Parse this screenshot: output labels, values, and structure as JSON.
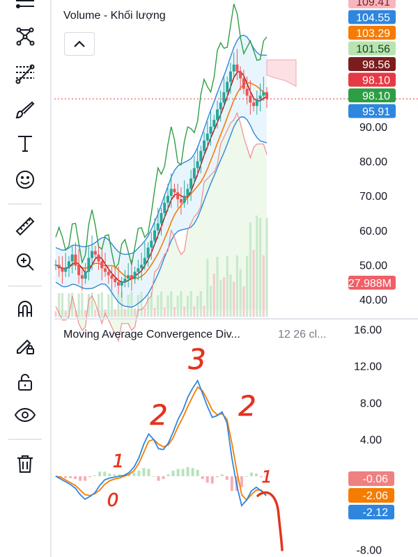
{
  "top_pane": {
    "title": "Volume - Khối lượng",
    "axis_ticks": [
      "90.00",
      "80.00",
      "70.00",
      "60.00",
      "50.00",
      "40.00"
    ],
    "price_tags": [
      {
        "label": "109.41",
        "color": "#f7b6bd",
        "text": "#7a1f2b"
      },
      {
        "label": "104.55",
        "color": "#2e86de",
        "text": "#ffffff"
      },
      {
        "label": "103.29",
        "color": "#f57c00",
        "text": "#ffffff"
      },
      {
        "label": "101.56",
        "color": "#b9e3b0",
        "text": "#16451a"
      },
      {
        "label": "98.56",
        "color": "#7b1d1d",
        "text": "#ffffff"
      },
      {
        "label": "98.10",
        "color": "#e53945",
        "text": "#ffffff"
      },
      {
        "label": "98.10",
        "color": "#2e9e44",
        "text": "#ffffff"
      },
      {
        "label": "95.91",
        "color": "#2e86de",
        "text": "#ffffff"
      }
    ],
    "volume_tag": {
      "label": "27.988M",
      "color": "#ef5f68",
      "text": "#ffffff"
    }
  },
  "macd_pane": {
    "title": "Moving Average Convergence Div...",
    "params": "12 26 cl...",
    "axis_ticks": [
      "16.00",
      "12.00",
      "8.00",
      "4.00",
      "-8.00"
    ],
    "value_tags": [
      {
        "label": "-0.06",
        "color": "#f08080",
        "text": "#ffffff"
      },
      {
        "label": "-2.06",
        "color": "#f57c00",
        "text": "#ffffff"
      },
      {
        "label": "-2.12",
        "color": "#2e86de",
        "text": "#ffffff"
      }
    ],
    "wave_annotations": [
      "0",
      "1",
      "2",
      "3",
      "2",
      "1"
    ]
  },
  "chart_data": [
    {
      "type": "line",
      "title": "Volume - Khối lượng",
      "ylim": [
        37,
        112
      ],
      "close": [
        50,
        49,
        48,
        49,
        51,
        53,
        50,
        47,
        46,
        48,
        52,
        54,
        53,
        51,
        49,
        48,
        47,
        46,
        45,
        44,
        45,
        46,
        47,
        46,
        48,
        49,
        50,
        52,
        55,
        57,
        60,
        62,
        65,
        68,
        70,
        72,
        71,
        69,
        68,
        70,
        72,
        75,
        78,
        80,
        83,
        86,
        88,
        90,
        92,
        95,
        97,
        100,
        103,
        106,
        108,
        106,
        104,
        101,
        99,
        97,
        96,
        98,
        99,
        100,
        98
      ],
      "series": [
        {
          "name": "MA fast",
          "color": "#b71c1c"
        },
        {
          "name": "MA slow",
          "color": "#f57c00"
        },
        {
          "name": "Bollinger bands",
          "color": "#2e86de"
        },
        {
          "name": "Trailing line",
          "color": "#2e9e44"
        }
      ],
      "reference_line": 98.1,
      "grid": false
    },
    {
      "type": "line",
      "title": "Moving Average Convergence Div...",
      "ylim": [
        -8,
        16
      ],
      "macd": [
        0,
        -0.3,
        -0.6,
        -0.9,
        -1.3,
        -2.0,
        -2.5,
        -2.2,
        -1.8,
        -1.0,
        -0.4,
        -0.2,
        -0.1,
        0,
        0.1,
        0.4,
        1.0,
        2.0,
        3.5,
        4.6,
        4.0,
        3.0,
        2.9,
        3.6,
        4.8,
        6.2,
        7.2,
        8.6,
        9.6,
        10.4,
        9.0,
        7.6,
        6.4,
        6.6,
        7.0,
        5.8,
        2.0,
        -1.0,
        -3.2,
        -2.6,
        -1.6,
        -1.2,
        -1.6,
        -2.12
      ],
      "signal": [
        0,
        -0.1,
        -0.4,
        -0.7,
        -1.0,
        -1.5,
        -2.0,
        -2.1,
        -1.9,
        -1.5,
        -0.9,
        -0.5,
        -0.3,
        -0.2,
        0,
        0.2,
        0.6,
        1.4,
        2.6,
        3.8,
        4.0,
        3.5,
        3.2,
        3.4,
        4.2,
        5.4,
        6.4,
        7.6,
        8.7,
        9.7,
        9.3,
        8.3,
        7.2,
        6.7,
        6.8,
        6.2,
        3.6,
        0.6,
        -2.0,
        -2.6,
        -2.0,
        -1.5,
        -1.5,
        -2.06
      ],
      "histogram": [
        0,
        -0.2,
        -0.2,
        -0.2,
        -0.3,
        -0.5,
        -0.5,
        -0.1,
        0.1,
        0.5,
        0.5,
        0.3,
        0.2,
        0.2,
        0.1,
        0.2,
        0.4,
        0.6,
        0.9,
        0.8,
        0,
        -0.5,
        -0.3,
        0.2,
        0.6,
        0.8,
        0.8,
        1.0,
        0.9,
        0.7,
        -0.3,
        -0.7,
        -0.8,
        -0.1,
        0.2,
        -0.4,
        -1.6,
        -1.6,
        -1.2,
        0,
        0.4,
        0.3,
        -0.1,
        -0.06
      ],
      "series": [
        {
          "name": "MACD",
          "color": "#2e86de"
        },
        {
          "name": "Signal",
          "color": "#f57c00"
        },
        {
          "name": "Histogram",
          "color": "#f4a6a6"
        }
      ],
      "grid": false
    }
  ]
}
